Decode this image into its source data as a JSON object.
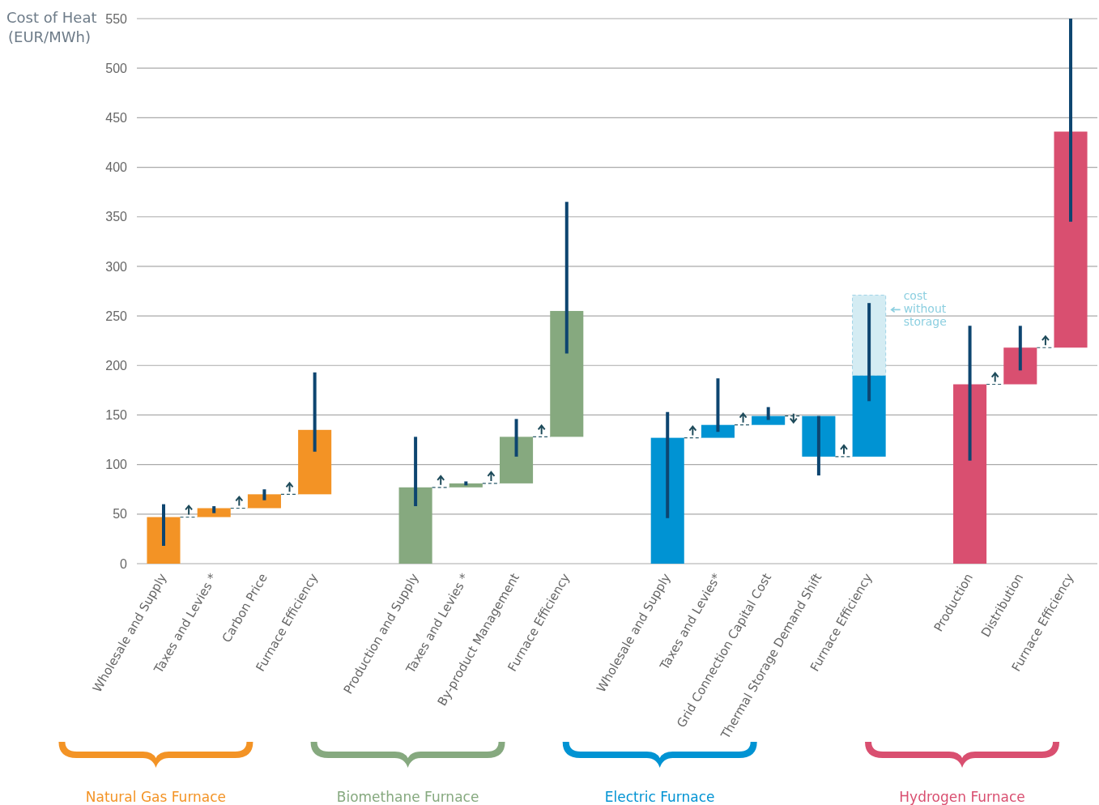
{
  "chart_data": {
    "type": "bar",
    "ylabel": "Cost of Heat (EUR/MWh)",
    "categories": [
      "Wholesale and Supply",
      "Taxes and Levies *",
      "Carbon Price",
      "Furnace Efficiency",
      null,
      "Production and Supply",
      "Taxes and Levies *",
      "By-product Management",
      "Furnace Efficiency",
      null,
      "Wholesale and Supply",
      "Taxes and Levies*",
      "Grid Connection Capital Cost",
      "Thermal Storage Demand Shift",
      "Furnace Efficiency",
      null,
      "Production",
      "Distribution",
      "Furnace Efficiency"
    ],
    "series": [
      {
        "values": [
          47,
          9,
          14,
          65,
          null,
          77,
          4,
          47,
          127,
          null,
          127,
          13,
          9,
          -41,
          82,
          null,
          181,
          37,
          218
        ],
        "base": [
          0,
          47,
          56,
          70,
          null,
          0,
          77,
          81,
          128,
          null,
          0,
          127,
          140,
          149,
          108,
          null,
          0,
          181,
          218
        ],
        "colors": [
          "#f39325",
          "#f39325",
          "#f39325",
          "#f39325",
          null,
          "#86a97f",
          "#86a97f",
          "#86a97f",
          "#86a97f",
          null,
          "#0093d3",
          "#0093d3",
          "#0093d3",
          "#0093d3",
          "#0093d3",
          null,
          "#d94f70",
          "#d94f70",
          "#d94f70"
        ],
        "errors": [
          [
            18,
            60
          ],
          [
            51,
            58
          ],
          [
            64,
            75
          ],
          [
            113,
            193
          ],
          null,
          [
            58,
            128
          ],
          [
            79,
            83
          ],
          [
            108,
            146
          ],
          [
            212,
            365
          ],
          null,
          [
            46,
            153
          ],
          [
            133,
            187
          ],
          [
            145,
            158
          ],
          [
            89,
            149
          ],
          [
            164,
            263
          ],
          null,
          [
            104,
            240
          ],
          [
            195,
            240
          ],
          [
            345,
            550
          ]
        ]
      },
      {
        "name": "cost without storage",
        "color": "#d4ecf3",
        "values": [
          null,
          null,
          null,
          null,
          null,
          null,
          null,
          null,
          null,
          null,
          null,
          null,
          null,
          null,
          81,
          null,
          null,
          null,
          null
        ],
        "base": [
          null,
          null,
          null,
          null,
          null,
          null,
          null,
          null,
          null,
          null,
          null,
          null,
          null,
          null,
          190,
          null,
          null,
          null,
          null
        ]
      }
    ],
    "ylim": [
      0,
      550
    ],
    "yticks": [
      0,
      50,
      100,
      150,
      200,
      250,
      300,
      350,
      400,
      450,
      500,
      550
    ],
    "grid": "y",
    "annotations": [
      "Natural Gas Furnace",
      "Biomethane Furnace",
      "Electric Furnace",
      "Hydrogen Furnace"
    ]
  }
}
